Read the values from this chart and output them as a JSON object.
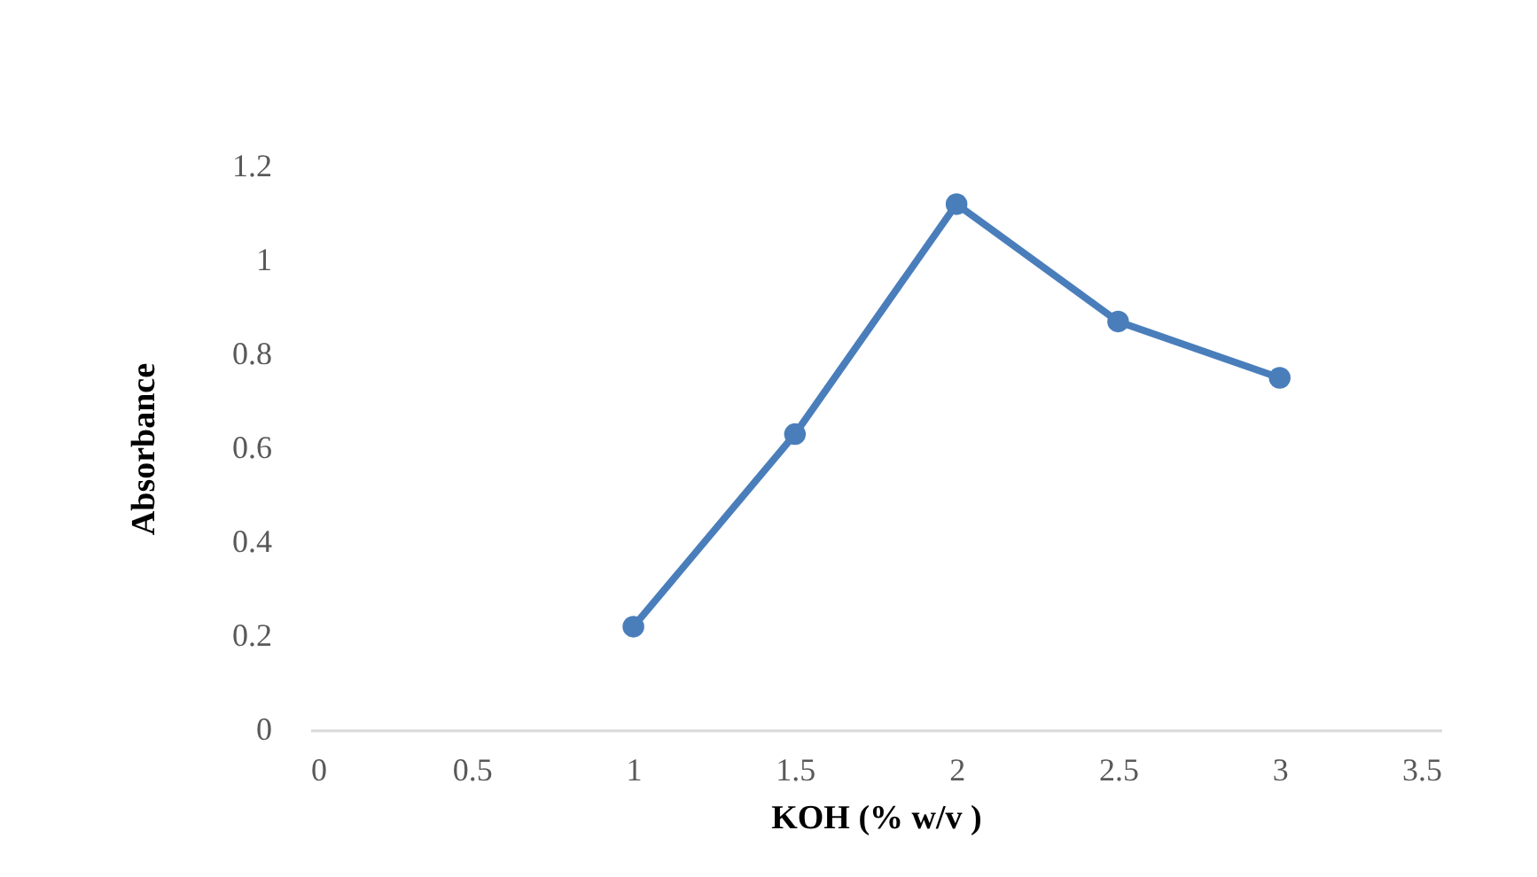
{
  "chart_data": {
    "type": "line",
    "xlabel": "KOH (% w/v )",
    "ylabel": "Absorbance",
    "x": [
      1,
      1.5,
      2,
      2.5,
      3
    ],
    "series": [
      {
        "color": "#4a7ebb",
        "values": [
          0.22,
          0.63,
          1.12,
          0.87,
          0.75
        ]
      }
    ],
    "xlim": [
      0,
      3.5
    ],
    "xticks": [
      0,
      0.5,
      1,
      1.5,
      2,
      2.5,
      3,
      3.5
    ],
    "ylim": [
      0,
      1.2
    ],
    "yticks": [
      0,
      0.2,
      0.4,
      0.6,
      0.8,
      1,
      1.2
    ],
    "grid": false,
    "legend": false,
    "marker": "circle",
    "line_style": "solid"
  }
}
